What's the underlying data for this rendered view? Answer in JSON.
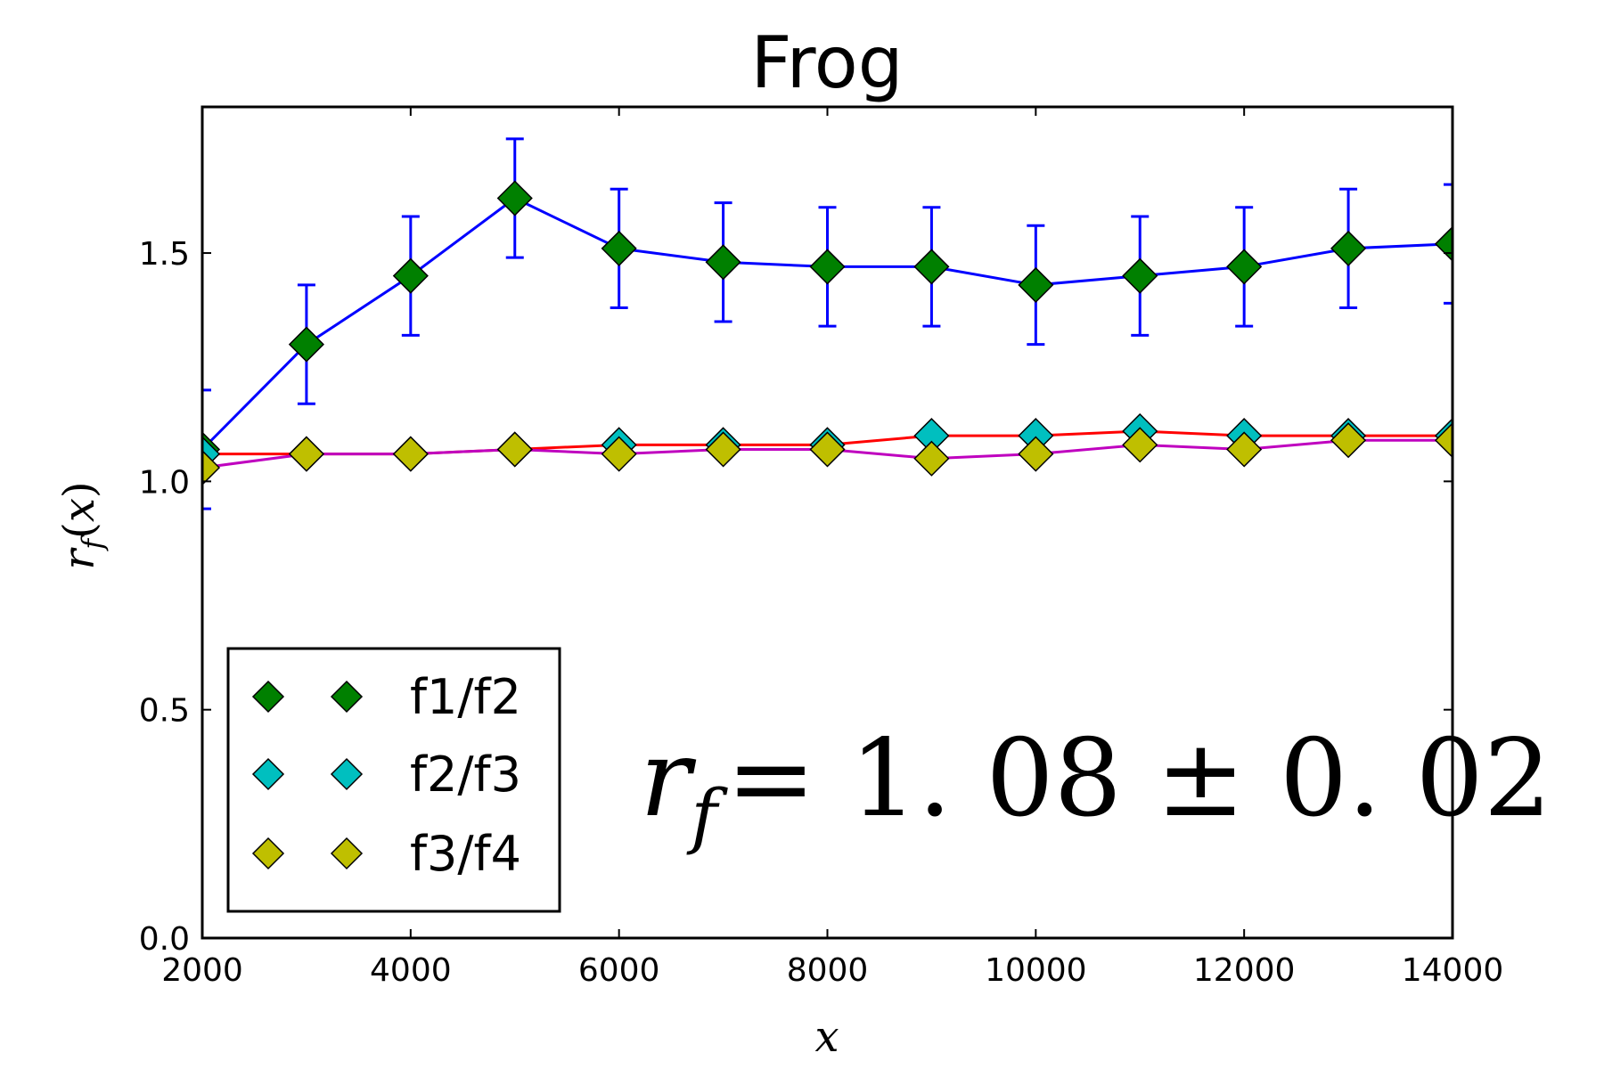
{
  "chart_data": {
    "type": "line",
    "title": "Frog",
    "xlabel": "x",
    "ylabel": "r_f(x)",
    "xlim": [
      2000,
      14000
    ],
    "ylim": [
      0.0,
      1.82
    ],
    "xticks": [
      2000,
      4000,
      6000,
      8000,
      10000,
      12000,
      14000
    ],
    "xtick_labels": [
      "2000",
      "4000",
      "6000",
      "8000",
      "10000",
      "12000",
      "14000"
    ],
    "yticks": [
      0.0,
      0.5,
      1.0,
      1.5
    ],
    "ytick_labels": [
      "0.0",
      "0.5",
      "1.0",
      "1.5"
    ],
    "x": [
      2000,
      3000,
      4000,
      5000,
      6000,
      7000,
      8000,
      9000,
      10000,
      11000,
      12000,
      13000,
      14000
    ],
    "series": [
      {
        "name": "f1/f2",
        "line_color": "#0000ff",
        "marker_color": "#008000",
        "values": [
          1.07,
          1.3,
          1.45,
          1.62,
          1.51,
          1.48,
          1.47,
          1.47,
          1.43,
          1.45,
          1.47,
          1.51,
          1.52
        ],
        "errors": [
          0.13,
          0.13,
          0.13,
          0.13,
          0.13,
          0.13,
          0.13,
          0.13,
          0.13,
          0.13,
          0.13,
          0.13,
          0.13
        ]
      },
      {
        "name": "f2/f3",
        "line_color": "#ff0000",
        "marker_color": "#00bfbf",
        "values": [
          1.06,
          1.06,
          1.06,
          1.07,
          1.08,
          1.08,
          1.08,
          1.1,
          1.1,
          1.11,
          1.1,
          1.1,
          1.1
        ],
        "errors": [
          0.01,
          0.01,
          0.01,
          0.01,
          0.01,
          0.01,
          0.01,
          0.01,
          0.01,
          0.01,
          0.01,
          0.01,
          0.01
        ]
      },
      {
        "name": "f3/f4",
        "line_color": "#bf00bf",
        "marker_color": "#bfbf00",
        "values": [
          1.03,
          1.06,
          1.06,
          1.07,
          1.06,
          1.07,
          1.07,
          1.05,
          1.06,
          1.08,
          1.07,
          1.09,
          1.09
        ],
        "errors": [
          0.01,
          0.01,
          0.01,
          0.01,
          0.01,
          0.01,
          0.01,
          0.01,
          0.01,
          0.01,
          0.01,
          0.01,
          0.01
        ]
      }
    ],
    "legend": {
      "placement": "lower-left",
      "entries": [
        "f1/f2",
        "f2/f3",
        "f3/f4"
      ]
    },
    "annotation": {
      "symbol": "r",
      "subscript": "f",
      "value_text": "= 1. 08 ± 0. 02"
    },
    "grid": false
  }
}
